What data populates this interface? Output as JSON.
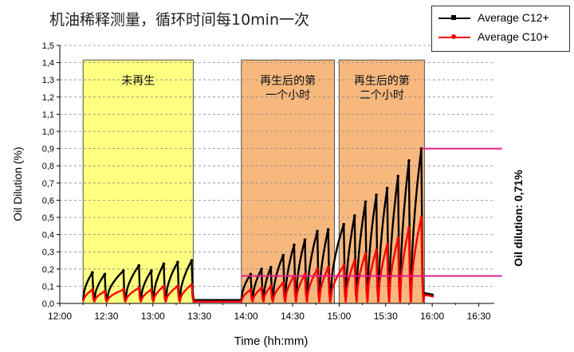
{
  "chart_data": {
    "type": "line",
    "title": "机油稀释测量，循环时间每10min一次",
    "xlabel": "Time (hh:mm)",
    "ylabel": "Oil Dilution (%)",
    "x_ticks": [
      "12:00",
      "12:30",
      "13:00",
      "13:30",
      "14:00",
      "14:30",
      "15:00",
      "15:30",
      "16:00",
      "16:30"
    ],
    "xlim": [
      "12:00",
      "16:40"
    ],
    "y_ticks": [
      "0,0",
      "0,1",
      "0,2",
      "0,3",
      "0,4",
      "0,5",
      "0,6",
      "0,7",
      "0,8",
      "0,9",
      "1,0",
      "1,1",
      "1,2",
      "1,3",
      "1,4",
      "1,5"
    ],
    "ylim": [
      0,
      1.5
    ],
    "grid": "horizontal dashed",
    "legend_position": "top-right",
    "regions": [
      {
        "label_lines": [
          "未再生"
        ],
        "start": "12:15",
        "end": "13:26",
        "color": "#ffff80"
      },
      {
        "label_lines": [
          "再生后的第",
          "一个小时"
        ],
        "start": "13:57",
        "end": "14:57",
        "color": "#f7b87e"
      },
      {
        "label_lines": [
          "再生后的第",
          "二个小时"
        ],
        "start": "15:00",
        "end": "15:55",
        "color": "#f7b87e"
      }
    ],
    "series": [
      {
        "name": "Average C12+",
        "color": "#000000",
        "cycle_peaks": [
          {
            "time": "12:21",
            "value": 0.18
          },
          {
            "time": "12:29",
            "value": 0.17
          },
          {
            "time": "12:41",
            "value": 0.19
          },
          {
            "time": "12:51",
            "value": 0.22
          },
          {
            "time": "12:59",
            "value": 0.19
          },
          {
            "time": "13:07",
            "value": 0.23
          },
          {
            "time": "13:16",
            "value": 0.24
          },
          {
            "time": "13:25",
            "value": 0.25
          },
          {
            "time": "14:03",
            "value": 0.17
          },
          {
            "time": "14:10",
            "value": 0.2
          },
          {
            "time": "14:16",
            "value": 0.21
          },
          {
            "time": "14:24",
            "value": 0.28
          },
          {
            "time": "14:31",
            "value": 0.34
          },
          {
            "time": "14:38",
            "value": 0.37
          },
          {
            "time": "14:46",
            "value": 0.42
          },
          {
            "time": "14:53",
            "value": 0.43
          },
          {
            "time": "15:03",
            "value": 0.46
          },
          {
            "time": "15:10",
            "value": 0.51
          },
          {
            "time": "15:17",
            "value": 0.59
          },
          {
            "time": "15:24",
            "value": 0.63
          },
          {
            "time": "15:31",
            "value": 0.67
          },
          {
            "time": "15:38",
            "value": 0.74
          },
          {
            "time": "15:45",
            "value": 0.83
          },
          {
            "time": "15:53",
            "value": 0.9
          }
        ],
        "base_level": 0.02
      },
      {
        "name": "Average C10+",
        "color": "#ff0000",
        "cycle_peaks": [
          {
            "time": "12:21",
            "value": 0.08
          },
          {
            "time": "12:29",
            "value": 0.07
          },
          {
            "time": "12:41",
            "value": 0.08
          },
          {
            "time": "12:51",
            "value": 0.09
          },
          {
            "time": "12:59",
            "value": 0.08
          },
          {
            "time": "13:07",
            "value": 0.1
          },
          {
            "time": "13:16",
            "value": 0.1
          },
          {
            "time": "13:25",
            "value": 0.11
          },
          {
            "time": "14:03",
            "value": 0.08
          },
          {
            "time": "14:10",
            "value": 0.09
          },
          {
            "time": "14:16",
            "value": 0.1
          },
          {
            "time": "14:24",
            "value": 0.12
          },
          {
            "time": "14:31",
            "value": 0.16
          },
          {
            "time": "14:38",
            "value": 0.17
          },
          {
            "time": "14:46",
            "value": 0.2
          },
          {
            "time": "14:53",
            "value": 0.21
          },
          {
            "time": "15:03",
            "value": 0.22
          },
          {
            "time": "15:10",
            "value": 0.25
          },
          {
            "time": "15:17",
            "value": 0.29
          },
          {
            "time": "15:24",
            "value": 0.31
          },
          {
            "time": "15:31",
            "value": 0.34
          },
          {
            "time": "15:38",
            "value": 0.38
          },
          {
            "time": "15:45",
            "value": 0.44
          },
          {
            "time": "15:53",
            "value": 0.5
          }
        ],
        "base_level": 0.01
      }
    ],
    "reference_lines": [
      {
        "value": 0.9,
        "start": "15:53",
        "end": "16:45",
        "color": "#e0208a"
      },
      {
        "value": 0.16,
        "start": "13:57",
        "end": "16:45",
        "color": "#e0208a"
      }
    ],
    "annotation": "Oil dilution: 0,71%"
  }
}
